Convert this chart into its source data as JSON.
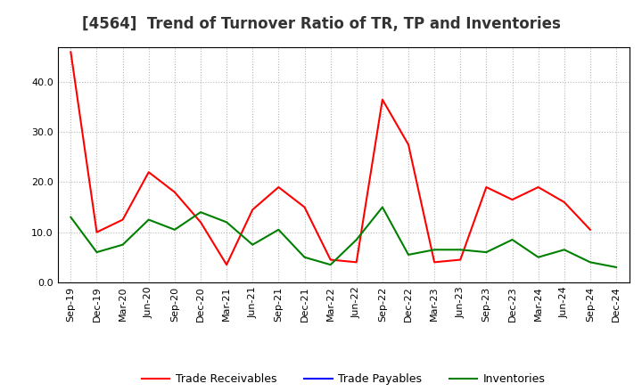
{
  "title": "[4564]  Trend of Turnover Ratio of TR, TP and Inventories",
  "x_labels": [
    "Sep-19",
    "Dec-19",
    "Mar-20",
    "Jun-20",
    "Sep-20",
    "Dec-20",
    "Mar-21",
    "Jun-21",
    "Sep-21",
    "Dec-21",
    "Mar-22",
    "Jun-22",
    "Sep-22",
    "Dec-22",
    "Mar-23",
    "Jun-23",
    "Sep-23",
    "Dec-23",
    "Mar-24",
    "Jun-24",
    "Sep-24",
    "Dec-24"
  ],
  "trade_receivables": [
    46.0,
    10.0,
    12.5,
    22.0,
    18.0,
    12.0,
    3.5,
    14.5,
    19.0,
    15.0,
    4.5,
    4.0,
    36.5,
    27.5,
    4.0,
    4.5,
    19.0,
    16.5,
    19.0,
    16.0,
    10.5,
    null
  ],
  "trade_payables": [
    null,
    null,
    null,
    null,
    null,
    null,
    null,
    null,
    null,
    null,
    null,
    null,
    null,
    null,
    null,
    null,
    null,
    null,
    null,
    null,
    null,
    null
  ],
  "inventories": [
    13.0,
    6.0,
    7.5,
    12.5,
    10.5,
    14.0,
    12.0,
    7.5,
    10.5,
    5.0,
    3.5,
    8.5,
    15.0,
    5.5,
    6.5,
    6.5,
    6.0,
    8.5,
    5.0,
    6.5,
    4.0,
    3.0
  ],
  "ylim": [
    0,
    47
  ],
  "yticks": [
    0.0,
    10.0,
    20.0,
    30.0,
    40.0
  ],
  "tr_color": "#ff0000",
  "tp_color": "#0000ff",
  "inv_color": "#008000",
  "bg_color": "#ffffff",
  "grid_color": "#b0b0b0",
  "title_fontsize": 12,
  "title_color": "#333333",
  "legend_fontsize": 9,
  "tick_fontsize": 8
}
